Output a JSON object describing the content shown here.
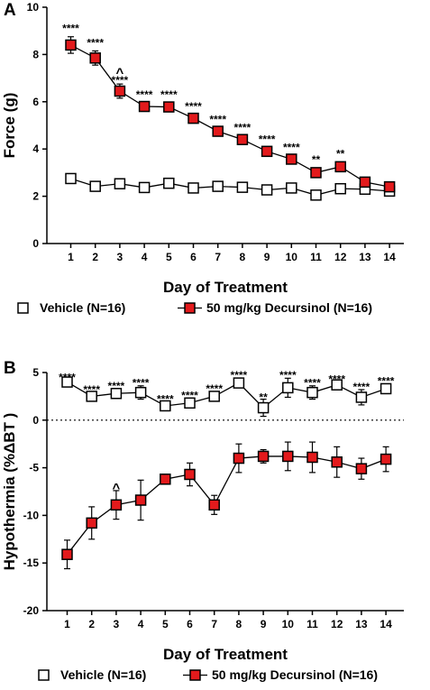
{
  "chart_data": [
    {
      "panel": "A",
      "type": "line",
      "xlabel": "Day of Treatment",
      "ylabel": "Force (g)",
      "categories": [
        "1",
        "2",
        "3",
        "4",
        "5",
        "6",
        "7",
        "8",
        "9",
        "10",
        "11",
        "12",
        "13",
        "14"
      ],
      "ylim": [
        0,
        10
      ],
      "yticks": [
        "0",
        "2",
        "4",
        "6",
        "8",
        "10"
      ],
      "zero_reference_line": false,
      "series": [
        {
          "name": "Vehicle (N=16)",
          "marker": "open-square",
          "color": "#ffffff",
          "values": [
            2.75,
            2.42,
            2.53,
            2.37,
            2.55,
            2.35,
            2.42,
            2.38,
            2.27,
            2.35,
            2.05,
            2.32,
            2.3,
            2.22
          ],
          "errors": [
            0.1,
            0.1,
            0.1,
            0.1,
            0.1,
            0.1,
            0.1,
            0.1,
            0.1,
            0.1,
            0.1,
            0.1,
            0.1,
            0.1
          ]
        },
        {
          "name": "50 mg/kg Decursinol (N=16)",
          "marker": "filled-square",
          "color": "#e31a1c",
          "values": [
            8.4,
            7.85,
            6.45,
            5.8,
            5.78,
            5.3,
            4.75,
            4.4,
            3.9,
            3.57,
            3.0,
            3.25,
            2.6,
            2.4
          ],
          "errors": [
            0.35,
            0.3,
            0.3,
            0.15,
            0.15,
            0.15,
            0.15,
            0.15,
            0.15,
            0.15,
            0.2,
            0.2,
            0.15,
            0.15
          ]
        }
      ],
      "annotations": [
        {
          "x": "1",
          "text": "****",
          "y": 9.1
        },
        {
          "x": "2",
          "text": "****",
          "y": 8.5
        },
        {
          "x": "3",
          "text": "^",
          "y": 7.2
        },
        {
          "x": "3",
          "text": "****",
          "y": 6.9
        },
        {
          "x": "4",
          "text": "****",
          "y": 6.3
        },
        {
          "x": "5",
          "text": "****",
          "y": 6.3
        },
        {
          "x": "6",
          "text": "****",
          "y": 5.8
        },
        {
          "x": "7",
          "text": "****",
          "y": 5.25
        },
        {
          "x": "8",
          "text": "****",
          "y": 4.9
        },
        {
          "x": "9",
          "text": "****",
          "y": 4.4
        },
        {
          "x": "10",
          "text": "****",
          "y": 4.07
        },
        {
          "x": "11",
          "text": "**",
          "y": 3.55
        },
        {
          "x": "12",
          "text": "**",
          "y": 3.8
        }
      ]
    },
    {
      "panel": "B",
      "type": "line",
      "xlabel": "Day of Treatment",
      "ylabel": "Hypothermia (%ΔBT )",
      "categories": [
        "1",
        "2",
        "3",
        "4",
        "5",
        "6",
        "7",
        "8",
        "9",
        "10",
        "11",
        "12",
        "13",
        "14"
      ],
      "ylim": [
        -20,
        5
      ],
      "yticks": [
        "-20",
        "-15",
        "-10",
        "-5",
        "0",
        "5"
      ],
      "zero_reference_line": true,
      "series": [
        {
          "name": "Vehicle (N=16)",
          "marker": "open-square",
          "color": "#ffffff",
          "values": [
            4.0,
            2.5,
            2.8,
            2.9,
            1.5,
            1.8,
            2.5,
            3.9,
            1.3,
            3.4,
            2.9,
            3.7,
            2.4,
            3.3
          ],
          "errors": [
            0.3,
            0.5,
            0.5,
            0.7,
            0.3,
            0.5,
            0.5,
            0.5,
            0.9,
            1.0,
            0.7,
            0.3,
            0.8,
            0.5
          ]
        },
        {
          "name": "50 mg/kg Decursinol (N=16)",
          "marker": "filled-square",
          "color": "#e31a1c",
          "values": [
            -14.1,
            -10.8,
            -8.9,
            -8.4,
            -6.2,
            -5.7,
            -8.9,
            -4.0,
            -3.8,
            -3.8,
            -3.9,
            -4.4,
            -5.1,
            -4.1
          ],
          "errors": [
            1.5,
            1.7,
            1.5,
            2.1,
            0.5,
            1.2,
            1.0,
            1.5,
            0.7,
            1.5,
            1.6,
            1.6,
            1.1,
            1.3
          ]
        }
      ],
      "annotations": [
        {
          "x": "1",
          "text": "****",
          "y": 4.5
        },
        {
          "x": "2",
          "text": "****",
          "y": 3.2
        },
        {
          "x": "3",
          "text": "****",
          "y": 3.6
        },
        {
          "x": "3",
          "text": "^",
          "y": -7.2
        },
        {
          "x": "4",
          "text": "****",
          "y": 3.9
        },
        {
          "x": "5",
          "text": "****",
          "y": 2.2
        },
        {
          "x": "6",
          "text": "****",
          "y": 2.6
        },
        {
          "x": "7",
          "text": "****",
          "y": 3.3
        },
        {
          "x": "8",
          "text": "****",
          "y": 4.7
        },
        {
          "x": "9",
          "text": "**",
          "y": 2.4
        },
        {
          "x": "10",
          "text": "****",
          "y": 4.7
        },
        {
          "x": "11",
          "text": "****",
          "y": 3.9
        },
        {
          "x": "12",
          "text": "****",
          "y": 4.3
        },
        {
          "x": "13",
          "text": "****",
          "y": 3.5
        },
        {
          "x": "14",
          "text": "****",
          "y": 4.1
        }
      ]
    }
  ],
  "figure": {
    "panel_labels": [
      "A",
      "B"
    ],
    "legend": [
      "Vehicle (N=16)",
      "50 mg/kg Decursinol (N=16)"
    ],
    "icons": {
      "vehicle_marker": "open-square-icon",
      "decursinol_marker": "filled-red-square-icon"
    }
  }
}
